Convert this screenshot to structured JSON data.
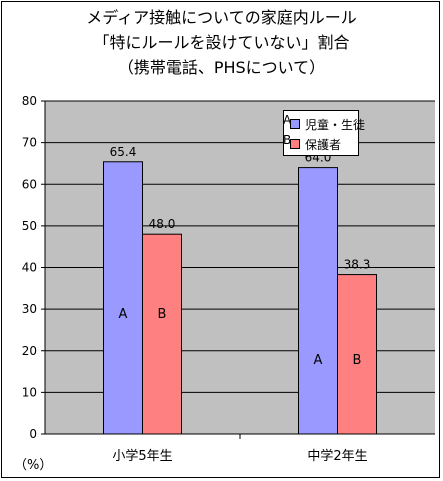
{
  "title": {
    "line1": "メディア接触についての家庭内ルール",
    "line2": "「特にルールを設けていない」割合",
    "line3": "（携帯電話、PHSについて）"
  },
  "unit_label": "（%）",
  "colors": {
    "plot_background": "#c0c0c0",
    "series_a": "#9999ff",
    "series_b": "#ff8080"
  },
  "legend": {
    "code_a": "A",
    "code_b": "B"
  },
  "chart_data": {
    "type": "bar",
    "categories": [
      "小学5年生",
      "中学2年生"
    ],
    "series": [
      {
        "name": "児童・生徒",
        "code": "A",
        "values": [
          65.4,
          64.0
        ],
        "value_labels": [
          "65.4",
          "64.0"
        ]
      },
      {
        "name": "保護者",
        "code": "B",
        "values": [
          48.0,
          38.3
        ],
        "value_labels": [
          "48.0",
          "38.3"
        ]
      }
    ],
    "ylim": [
      0,
      80
    ],
    "yticks": [
      "0",
      "10",
      "20",
      "30",
      "40",
      "50",
      "60",
      "70",
      "80"
    ],
    "ytick_values": [
      0,
      10,
      20,
      30,
      40,
      50,
      60,
      70,
      80
    ],
    "grid": true,
    "legend_position": "top-right"
  }
}
